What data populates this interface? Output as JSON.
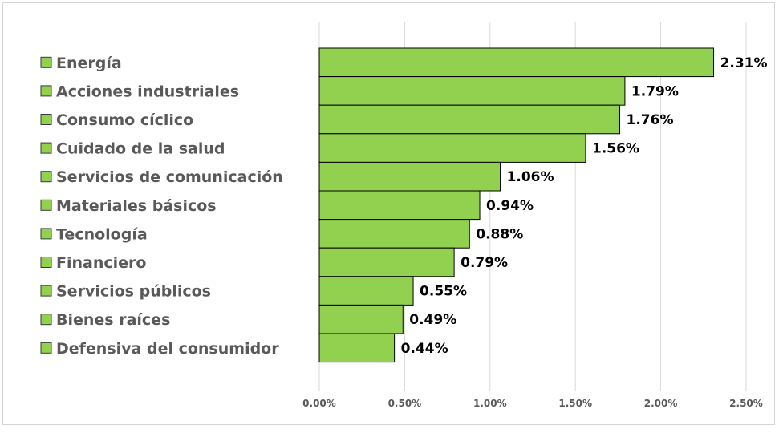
{
  "chart_data": {
    "type": "bar",
    "orientation": "horizontal",
    "categories": [
      "Energía",
      "Acciones industriales",
      "Consumo cíclico",
      "Cuidado de la salud",
      "Servicios de comunicación",
      "Materiales básicos",
      "Tecnología",
      "Financiero",
      "Servicios públicos",
      "Bienes raíces",
      "Defensiva del consumidor"
    ],
    "values": [
      2.31,
      1.79,
      1.76,
      1.56,
      1.06,
      0.94,
      0.88,
      0.79,
      0.55,
      0.49,
      0.44
    ],
    "value_labels": [
      "2.31%",
      "1.79%",
      "1.76%",
      "1.56%",
      "1.06%",
      "0.94%",
      "0.88%",
      "0.79%",
      "0.55%",
      "0.49%",
      "0.44%"
    ],
    "x_ticks": [
      "0.00%",
      "0.50%",
      "1.00%",
      "1.50%",
      "2.00%",
      "2.50%"
    ],
    "xlim": [
      0,
      2.5
    ],
    "title": "",
    "xlabel": "",
    "ylabel": "",
    "grid": "vertical",
    "legend_placement": "left",
    "bar_color": "#92d050",
    "bar_border_color": "#000000",
    "gridline_color": "#d9d9d9"
  }
}
